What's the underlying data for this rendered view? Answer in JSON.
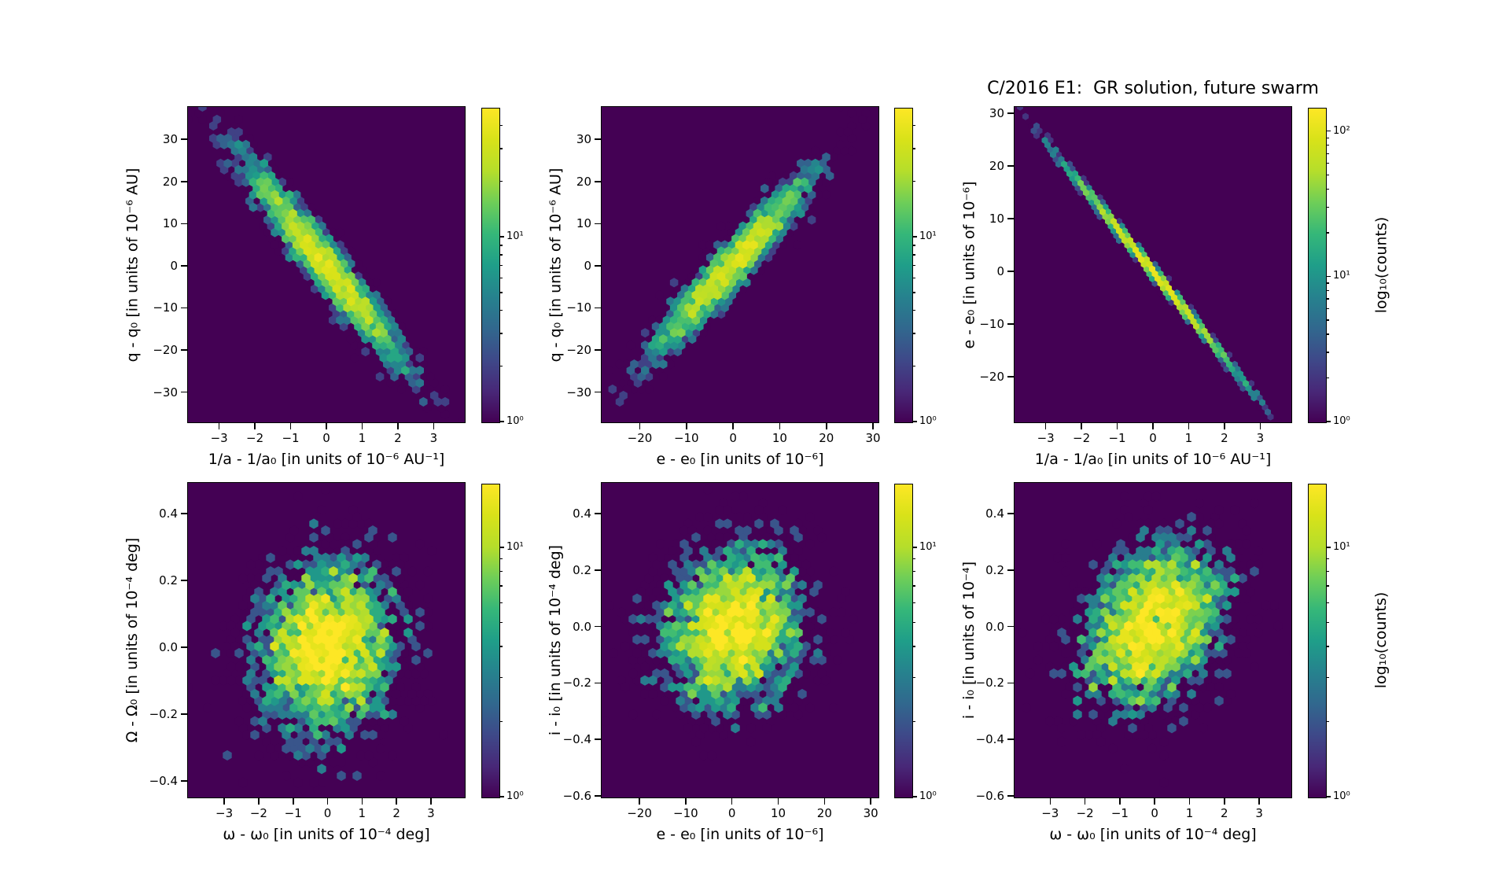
{
  "figure": {
    "background": "#ffffff",
    "axes_background": "#440154",
    "spine_color": "#000000"
  },
  "chart_data": {
    "type": "hexbin",
    "title": "C/2016 E1:  GR solution, future swarm",
    "colormap": "viridis",
    "colormap_hex_stops": [
      "#440154",
      "#482878",
      "#3e4989",
      "#31688e",
      "#26828e",
      "#1f9e89",
      "#35b779",
      "#6ece58",
      "#b5de2b",
      "#d8e219",
      "#fde725"
    ],
    "colorbar_scale": "log10(counts)",
    "panels": [
      {
        "name": "q-q0-vs-inva-inva0",
        "row": 0,
        "col": 0,
        "xlabel": "1/a - 1/a₀ [in units of 10⁻⁶ AU⁻¹]",
        "ylabel": "q - q₀ [in units of 10⁻⁶ AU]",
        "xlim": [
          -3.85,
          3.85
        ],
        "ylim": [
          -37,
          37.5
        ],
        "xtick_values": [
          -3,
          -2,
          -1,
          0,
          1,
          2,
          3
        ],
        "xtick_labels": [
          "−3",
          "−2",
          "−1",
          "0",
          "1",
          "2",
          "3"
        ],
        "ytick_values": [
          30,
          20,
          10,
          0,
          -10,
          -20,
          -30
        ],
        "ytick_labels": [
          "30",
          "20",
          "10",
          "0",
          "−10",
          "−20",
          "−30"
        ],
        "hex_gridsize": 38,
        "distribution": {
          "kind": "gaussian-band",
          "n": 3000,
          "seed": 101,
          "cx": 0,
          "cy": 0,
          "sx": 1.15,
          "slope": -10.3,
          "noise": 3.5
        },
        "colorbar": {
          "vmin": 1,
          "vmax": 50,
          "tick_values": [
            1,
            10
          ],
          "tick_labels": [
            "10⁰",
            "10¹"
          ],
          "label": ""
        }
      },
      {
        "name": "q-q0-vs-e-e0",
        "row": 0,
        "col": 1,
        "xlabel": "e - e₀ [in units of 10⁻⁶]",
        "ylabel": "q - q₀ [in units of 10⁻⁶ AU]",
        "xlim": [
          -28,
          31
        ],
        "ylim": [
          -37,
          37.5
        ],
        "xtick_values": [
          -20,
          -10,
          0,
          10,
          20,
          30
        ],
        "xtick_labels": [
          "−20",
          "−10",
          "0",
          "10",
          "20",
          "30"
        ],
        "ytick_values": [
          30,
          20,
          10,
          0,
          -10,
          -20,
          -30
        ],
        "ytick_labels": [
          "30",
          "20",
          "10",
          "0",
          "−10",
          "−20",
          "−30"
        ],
        "hex_gridsize": 38,
        "distribution": {
          "kind": "gaussian-band",
          "n": 2700,
          "seed": 202,
          "cx": 0,
          "cy": 0,
          "sx": 8.5,
          "slope": 1.2,
          "noise": 3.2
        },
        "colorbar": {
          "vmin": 1,
          "vmax": 50,
          "tick_values": [
            1,
            10
          ],
          "tick_labels": [
            "10⁰",
            "10¹"
          ],
          "label": ""
        }
      },
      {
        "name": "e-e0-vs-inva-inva0",
        "row": 0,
        "col": 2,
        "xlabel": "1/a - 1/a₀ [in units of 10⁻⁶ AU⁻¹]",
        "ylabel": "e - e₀ [in units of 10⁻⁶]",
        "xlim": [
          -3.85,
          3.85
        ],
        "ylim": [
          -28.5,
          31
        ],
        "xtick_values": [
          -3,
          -2,
          -1,
          0,
          1,
          2,
          3
        ],
        "xtick_labels": [
          "−3",
          "−2",
          "−1",
          "0",
          "1",
          "2",
          "3"
        ],
        "ytick_values": [
          30,
          20,
          10,
          0,
          -10,
          -20
        ],
        "ytick_labels": [
          "30",
          "20",
          "10",
          "0",
          "−10",
          "−20"
        ],
        "hex_gridsize": 50,
        "distribution": {
          "kind": "gaussian-band",
          "n": 4100,
          "seed": 303,
          "cx": 0,
          "cy": 0,
          "sx": 1.2,
          "slope": -8.2,
          "noise": 0.5
        },
        "colorbar": {
          "vmin": 1,
          "vmax": 145,
          "tick_values": [
            1,
            10,
            100
          ],
          "tick_labels": [
            "10⁰",
            "10¹",
            "10²"
          ],
          "label": "log₁₀(counts)"
        }
      },
      {
        "name": "Omega-Omega0-vs-omega-omega0",
        "row": 1,
        "col": 0,
        "xlabel": "ω - ω₀ [in units of 10⁻⁴ deg]",
        "ylabel": "Ω - Ω₀ [in units of 10⁻⁴ deg]",
        "xlim": [
          -4.03,
          3.96
        ],
        "ylim": [
          -0.447,
          0.489
        ],
        "xtick_values": [
          -3,
          -2,
          -1,
          0,
          1,
          2,
          3
        ],
        "xtick_labels": [
          "−3",
          "−2",
          "−1",
          "0",
          "1",
          "2",
          "3"
        ],
        "ytick_values": [
          0.4,
          0.2,
          0,
          -0.2,
          -0.4
        ],
        "ytick_labels": [
          "0.4",
          "0.2",
          "0.0",
          "−0.2",
          "−0.4"
        ],
        "hex_gridsize": 35,
        "distribution": {
          "kind": "gaussian-band",
          "n": 3300,
          "seed": 404,
          "cx": 0,
          "cy": 0,
          "sx": 1.05,
          "slope": 0.01,
          "noise": 0.135
        },
        "colorbar": {
          "vmin": 1,
          "vmax": 18,
          "tick_values": [
            1,
            10
          ],
          "tick_labels": [
            "10⁰",
            "10¹"
          ],
          "label": ""
        }
      },
      {
        "name": "i-i0-vs-e-e0",
        "row": 1,
        "col": 1,
        "xlabel": "e - e₀ [in units of 10⁻⁶]",
        "ylabel": "i - i₀ [in units of 10⁻⁴ deg]",
        "xlim": [
          -28,
          31.5
        ],
        "ylim": [
          -0.603,
          0.506
        ],
        "xtick_values": [
          -20,
          -10,
          0,
          10,
          20,
          30
        ],
        "xtick_labels": [
          "−20",
          "−10",
          "0",
          "10",
          "20",
          "30"
        ],
        "ytick_values": [
          0.4,
          0.2,
          0,
          -0.2,
          -0.4,
          -0.6
        ],
        "ytick_labels": [
          "0.4",
          "0.2",
          "0.0",
          "−0.2",
          "−0.4",
          "−0.6"
        ],
        "hex_gridsize": 35,
        "distribution": {
          "kind": "gaussian-band",
          "n": 3000,
          "seed": 505,
          "cx": 0,
          "cy": 0,
          "sx": 7.8,
          "slope": 0.002,
          "noise": 0.145
        },
        "colorbar": {
          "vmin": 1,
          "vmax": 18,
          "tick_values": [
            1,
            10
          ],
          "tick_labels": [
            "10⁰",
            "10¹"
          ],
          "label": ""
        }
      },
      {
        "name": "i-i0-vs-omega-omega0",
        "row": 1,
        "col": 2,
        "xlabel": "ω - ω₀ [in units of 10⁻⁴ deg]",
        "ylabel": "i - i₀ [in units of 10⁻⁴]",
        "xlim": [
          -4.0,
          3.9
        ],
        "ylim": [
          -0.603,
          0.506
        ],
        "xtick_values": [
          -3,
          -2,
          -1,
          0,
          1,
          2,
          3
        ],
        "xtick_labels": [
          "−3",
          "−2",
          "−1",
          "0",
          "1",
          "2",
          "3"
        ],
        "ytick_values": [
          0.4,
          0.2,
          0,
          -0.2,
          -0.4,
          -0.6
        ],
        "ytick_labels": [
          "0.4",
          "0.2",
          "0.0",
          "−0.2",
          "−0.4",
          "−0.6"
        ],
        "hex_gridsize": 35,
        "distribution": {
          "kind": "gaussian-band",
          "n": 3000,
          "seed": 606,
          "cx": 0,
          "cy": 0,
          "sx": 1.05,
          "slope": 0.045,
          "noise": 0.14
        },
        "colorbar": {
          "vmin": 1,
          "vmax": 18,
          "tick_values": [
            1,
            10
          ],
          "tick_labels": [
            "10⁰",
            "10¹"
          ],
          "label": "log₁₀(counts)"
        }
      }
    ]
  }
}
